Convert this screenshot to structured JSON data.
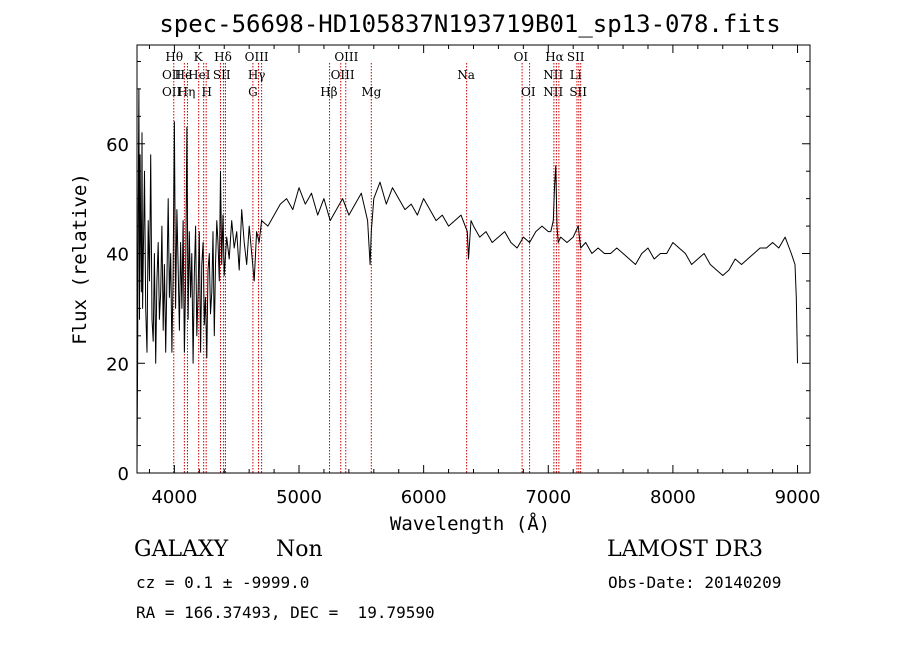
{
  "chart_data": {
    "type": "line",
    "title": "spec-56698-HD105837N193719B01_sp13-078.fits",
    "xlabel": "Wavelength (Å)",
    "ylabel": "Flux (relative)",
    "xlim": [
      3700,
      9100
    ],
    "ylim": [
      0,
      78
    ],
    "x_ticks": [
      4000,
      5000,
      6000,
      7000,
      8000,
      9000
    ],
    "y_ticks": [
      0,
      20,
      40,
      60
    ],
    "series": [
      {
        "x": [
          3700,
          3705,
          3710,
          3715,
          3720,
          3725,
          3730,
          3735,
          3740,
          3745,
          3750,
          3760,
          3770,
          3780,
          3790,
          3800,
          3810,
          3820,
          3830,
          3840,
          3850,
          3860,
          3870,
          3880,
          3890,
          3900,
          3910,
          3920,
          3930,
          3940,
          3950,
          3960,
          3970,
          3980,
          3990,
          4000,
          4010,
          4020,
          4030,
          4040,
          4050,
          4060,
          4070,
          4080,
          4090,
          4100,
          4110,
          4120,
          4130,
          4140,
          4150,
          4160,
          4170,
          4180,
          4190,
          4200,
          4210,
          4220,
          4230,
          4240,
          4250,
          4260,
          4270,
          4280,
          4290,
          4300,
          4310,
          4320,
          4330,
          4340,
          4350,
          4360,
          4370,
          4380,
          4390,
          4400,
          4420,
          4440,
          4460,
          4480,
          4500,
          4520,
          4540,
          4560,
          4580,
          4600,
          4620,
          4640,
          4660,
          4680,
          4700,
          4750,
          4800,
          4850,
          4900,
          4950,
          5000,
          5050,
          5100,
          5150,
          5200,
          5250,
          5300,
          5350,
          5400,
          5450,
          5500,
          5550,
          5570,
          5580,
          5600,
          5650,
          5700,
          5750,
          5800,
          5850,
          5900,
          5950,
          6000,
          6050,
          6100,
          6150,
          6200,
          6250,
          6300,
          6350,
          6360,
          6380,
          6400,
          6450,
          6500,
          6550,
          6600,
          6650,
          6700,
          6750,
          6800,
          6850,
          6900,
          6950,
          7000,
          7020,
          7040,
          7050,
          7060,
          7070,
          7080,
          7100,
          7150,
          7200,
          7220,
          7240,
          7260,
          7300,
          7350,
          7400,
          7450,
          7500,
          7550,
          7600,
          7650,
          7700,
          7750,
          7800,
          7850,
          7900,
          7950,
          8000,
          8050,
          8100,
          8150,
          8200,
          8250,
          8300,
          8350,
          8400,
          8450,
          8500,
          8550,
          8600,
          8650,
          8700,
          8750,
          8800,
          8850,
          8900,
          8950,
          8980,
          8990,
          9000
        ],
        "y": [
          1,
          20,
          48,
          70,
          28,
          58,
          44,
          33,
          62,
          30,
          38,
          55,
          30,
          22,
          46,
          35,
          58,
          28,
          24,
          40,
          20,
          35,
          42,
          28,
          33,
          45,
          26,
          38,
          22,
          35,
          50,
          32,
          40,
          22,
          36,
          64,
          30,
          48,
          38,
          26,
          42,
          30,
          46,
          22,
          35,
          63,
          28,
          44,
          32,
          40,
          20,
          36,
          45,
          25,
          33,
          44,
          22,
          38,
          42,
          27,
          32,
          21,
          37,
          40,
          29,
          33,
          44,
          25,
          38,
          46,
          42,
          35,
          55,
          38,
          47,
          36,
          43,
          39,
          46,
          41,
          44,
          37,
          48,
          42,
          38,
          45,
          40,
          35,
          44,
          42,
          46,
          45,
          47,
          49,
          50,
          48,
          52,
          49,
          51,
          47,
          50,
          46,
          48,
          50,
          47,
          49,
          51,
          46,
          38,
          44,
          50,
          53,
          49,
          52,
          50,
          48,
          49,
          47,
          50,
          48,
          46,
          47,
          45,
          46,
          47,
          44,
          39,
          46,
          45,
          43,
          44,
          42,
          43,
          44,
          42,
          41,
          43,
          42,
          44,
          45,
          44,
          44,
          46,
          52,
          56,
          45,
          42,
          43,
          42,
          43,
          44,
          45,
          41,
          42,
          40,
          41,
          40,
          40,
          41,
          40,
          39,
          38,
          40,
          41,
          39,
          40,
          40,
          42,
          41,
          40,
          38,
          39,
          40,
          38,
          37,
          36,
          37,
          39,
          38,
          39,
          40,
          41,
          41,
          42,
          41,
          43,
          40,
          38,
          32,
          20
        ]
      }
    ],
    "line_markers": [
      {
        "label": "Hθ",
        "x": 3999,
        "row": 0
      },
      {
        "label": "OII",
        "x": 3978,
        "row": 1
      },
      {
        "label": "OII",
        "x": 3978,
        "row": 2
      },
      {
        "label": "He",
        "x": 4072,
        "row": 1
      },
      {
        "label": "Hη",
        "x": 4097,
        "row": 2
      },
      {
        "label": "K",
        "x": 4190,
        "row": 0
      },
      {
        "label": "HeI",
        "x": 4200,
        "row": 1
      },
      {
        "label": "H",
        "x": 4260,
        "row": 2
      },
      {
        "label": "Hδ",
        "x": 4390,
        "row": 0
      },
      {
        "label": "SII",
        "x": 4380,
        "row": 1
      },
      {
        "label": "OIII",
        "x": 4660,
        "row": 0
      },
      {
        "label": "Hγ",
        "x": 4660,
        "row": 1
      },
      {
        "label": "G",
        "x": 4630,
        "row": 2
      },
      {
        "label": "OIII",
        "x": 5380,
        "row": 0
      },
      {
        "label": "OIII",
        "x": 5350,
        "row": 1
      },
      {
        "label": "Hβ",
        "x": 5240,
        "row": 2
      },
      {
        "label": "Mg",
        "x": 5580,
        "row": 2
      },
      {
        "label": "Na",
        "x": 6340,
        "row": 1
      },
      {
        "label": "OI",
        "x": 6780,
        "row": 0
      },
      {
        "label": "OI",
        "x": 6840,
        "row": 2
      },
      {
        "label": "Hα",
        "x": 7050,
        "row": 0
      },
      {
        "label": "SII",
        "x": 7220,
        "row": 0
      },
      {
        "label": "NII",
        "x": 7040,
        "row": 1
      },
      {
        "label": "Li",
        "x": 7220,
        "row": 1
      },
      {
        "label": "NII",
        "x": 7040,
        "row": 2
      },
      {
        "label": "SII",
        "x": 7240,
        "row": 2
      }
    ],
    "marker_lines_x": [
      3995,
      4080,
      4105,
      4195,
      4235,
      4255,
      4370,
      4395,
      4410,
      4630,
      4675,
      4700,
      5245,
      5335,
      5375,
      5580,
      6345,
      6790,
      6850,
      7045,
      7065,
      7085,
      7230,
      7245,
      7260
    ]
  },
  "info": {
    "object_type": "GALAXY",
    "subclass": "Non",
    "survey": "LAMOST DR3",
    "redshift": "cz = 0.1 ± -9999.0",
    "obs_date": "Obs-Date: 20140209",
    "coordinates": "RA = 166.37493, DEC =  19.79590"
  },
  "colors": {
    "spectrum": "#000000",
    "marker_line": "#cc0000"
  }
}
